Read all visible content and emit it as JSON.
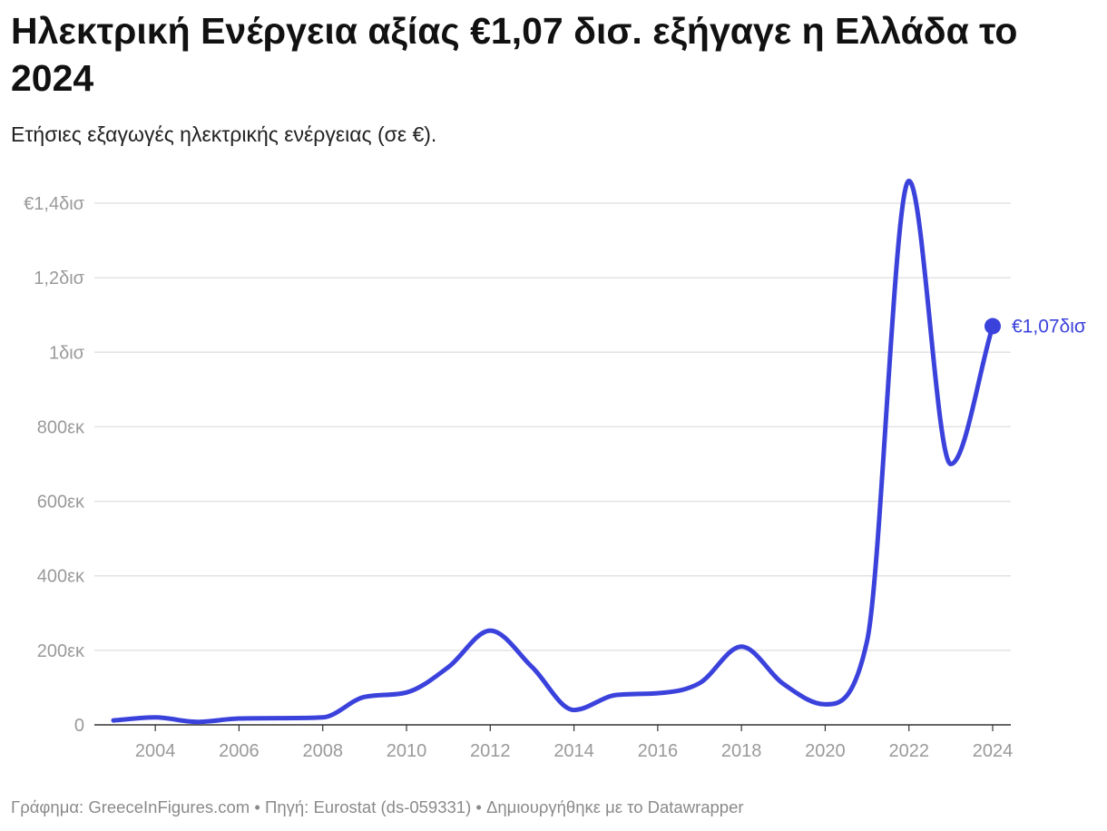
{
  "header": {
    "title": "Ηλεκτρική Ενέργεια αξίας €1,07 δισ. εξήγαγε η Ελλάδα το 2024",
    "subtitle": "Ετήσιες εξαγωγές ηλεκτρικής ενέργειας (σε €)."
  },
  "footer": {
    "chart_label": "Γράφημα:",
    "chart_by": "GreeceInFigures.com",
    "sep1": "•",
    "source_label": "Πηγή:",
    "source": "Eurostat (ds-059331)",
    "sep2": "•",
    "created_with": "Δημιουργήθηκε με το Datawrapper"
  },
  "colors": {
    "line": "#3b42dc",
    "grid": "#e3e3e3",
    "axis": "#333333",
    "tick_text": "#9a9a9a"
  },
  "chart_data": {
    "type": "line",
    "title": "Ηλεκτρική Ενέργεια αξίας €1,07 δισ. εξήγαγε η Ελλάδα το 2024",
    "subtitle": "Ετήσιες εξαγωγές ηλεκτρικής ενέργειας (σε €).",
    "xlabel": "",
    "ylabel": "",
    "xlim": [
      2003,
      2024
    ],
    "ylim": [
      0,
      1400000000
    ],
    "grid": true,
    "legend": "none",
    "x": [
      2003,
      2004,
      2005,
      2006,
      2007,
      2008,
      2009,
      2010,
      2011,
      2012,
      2013,
      2014,
      2015,
      2016,
      2017,
      2018,
      2019,
      2020,
      2021,
      2022,
      2023,
      2024
    ],
    "series": [
      {
        "values": [
          12000000,
          20000000,
          8000000,
          17000000,
          18000000,
          20000000,
          75000000,
          87000000,
          155000000,
          253000000,
          155000000,
          40000000,
          80000000,
          85000000,
          112000000,
          210000000,
          110000000,
          55000000,
          225000000,
          1460000000,
          700000000,
          1070000000
        ]
      }
    ],
    "y_ticks": [
      {
        "value": 0,
        "label": "0"
      },
      {
        "value": 200000000,
        "label": "200εκ"
      },
      {
        "value": 400000000,
        "label": "400εκ"
      },
      {
        "value": 600000000,
        "label": "600εκ"
      },
      {
        "value": 800000000,
        "label": "800εκ"
      },
      {
        "value": 1000000000,
        "label": "1δισ"
      },
      {
        "value": 1200000000,
        "label": "1,2δισ"
      },
      {
        "value": 1400000000,
        "label": "€1,4δισ"
      }
    ],
    "x_ticks": [
      {
        "value": 2004,
        "label": "2004"
      },
      {
        "value": 2006,
        "label": "2006"
      },
      {
        "value": 2008,
        "label": "2008"
      },
      {
        "value": 2010,
        "label": "2010"
      },
      {
        "value": 2012,
        "label": "2012"
      },
      {
        "value": 2014,
        "label": "2014"
      },
      {
        "value": 2016,
        "label": "2016"
      },
      {
        "value": 2018,
        "label": "2018"
      },
      {
        "value": 2020,
        "label": "2020"
      },
      {
        "value": 2022,
        "label": "2022"
      },
      {
        "value": 2024,
        "label": "2024"
      }
    ],
    "end_label": "€1,07δισ"
  }
}
